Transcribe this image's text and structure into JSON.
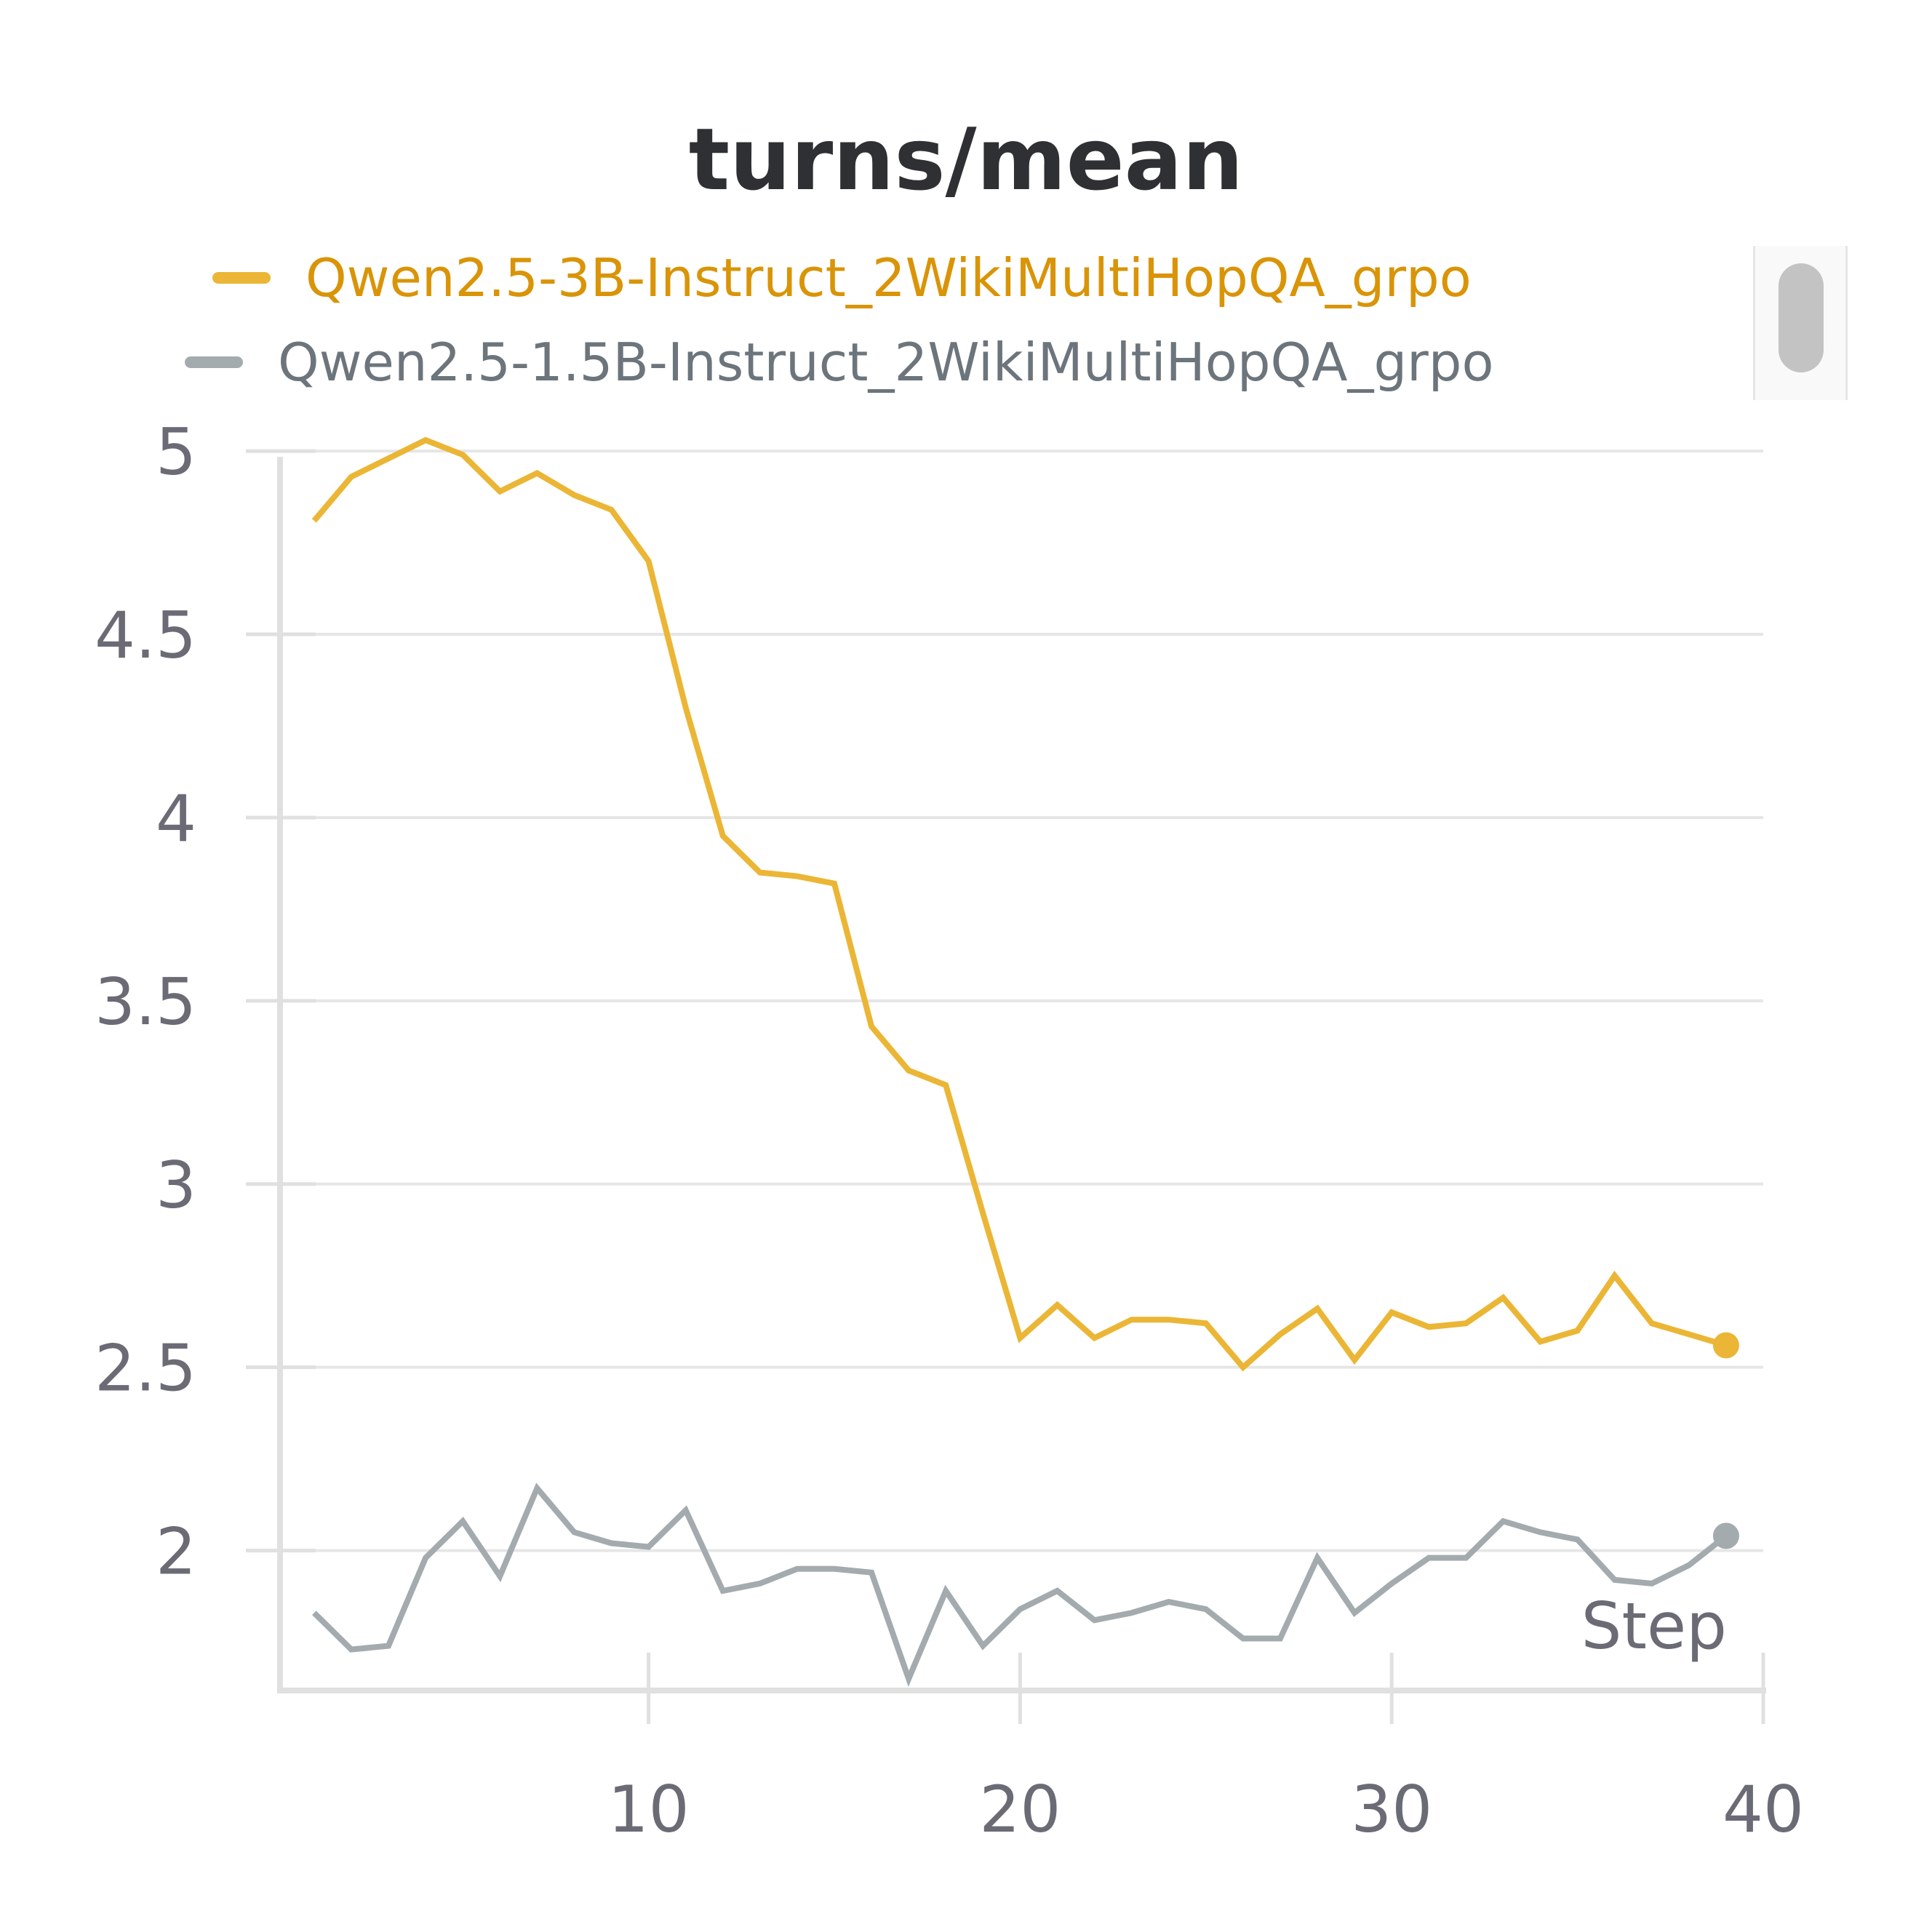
{
  "chart_data": {
    "type": "line",
    "title": "turns/mean",
    "xlabel": "Step",
    "ylabel": "",
    "xlim": [
      1,
      40
    ],
    "ylim": [
      1.63,
      5.04
    ],
    "xticks": [
      10,
      20,
      30,
      40
    ],
    "yticks": [
      2,
      2.5,
      3,
      3.5,
      4,
      4.5,
      5
    ],
    "grid": "horizontal",
    "legend_position": "top",
    "series": [
      {
        "name": "Qwen2.5-3B-Instruct_2WikiMultiHopQA_grpo",
        "color": "#ebb635",
        "label_color": "#d99407",
        "x": [
          1,
          2,
          3,
          4,
          5,
          6,
          7,
          8,
          9,
          10,
          11,
          12,
          13,
          14,
          15,
          16,
          17,
          18,
          19,
          20,
          21,
          22,
          23,
          24,
          25,
          26,
          27,
          28,
          29,
          30,
          31,
          32,
          33,
          34,
          35,
          36,
          37,
          38,
          39
        ],
        "y": [
          4.81,
          4.93,
          4.98,
          5.03,
          4.99,
          4.89,
          4.94,
          4.88,
          4.84,
          4.7,
          4.3,
          3.95,
          3.85,
          3.84,
          3.82,
          3.43,
          3.31,
          3.27,
          2.92,
          2.58,
          2.67,
          2.58,
          2.63,
          2.63,
          2.62,
          2.5,
          2.59,
          2.66,
          2.52,
          2.65,
          2.61,
          2.62,
          2.69,
          2.57,
          2.6,
          2.75,
          2.62,
          2.59,
          2.56
        ]
      },
      {
        "name": "Qwen2.5-1.5B-Instruct_2WikiMultiHopQA_grpo",
        "color": "#a4abaf",
        "label_color": "#6d757c",
        "x": [
          1,
          2,
          3,
          4,
          5,
          6,
          7,
          8,
          9,
          10,
          11,
          12,
          13,
          14,
          15,
          16,
          17,
          18,
          19,
          20,
          21,
          22,
          23,
          24,
          25,
          26,
          27,
          28,
          29,
          30,
          31,
          32,
          33,
          34,
          35,
          36,
          37,
          38,
          39
        ],
        "y": [
          1.83,
          1.73,
          1.74,
          1.98,
          2.08,
          1.93,
          2.17,
          2.05,
          2.02,
          2.01,
          2.11,
          1.89,
          1.91,
          1.95,
          1.95,
          1.94,
          1.65,
          1.89,
          1.74,
          1.84,
          1.89,
          1.81,
          1.83,
          1.86,
          1.84,
          1.76,
          1.76,
          1.98,
          1.83,
          1.91,
          1.98,
          1.98,
          2.08,
          2.05,
          2.03,
          1.92,
          1.91,
          1.96,
          2.04
        ]
      }
    ]
  }
}
